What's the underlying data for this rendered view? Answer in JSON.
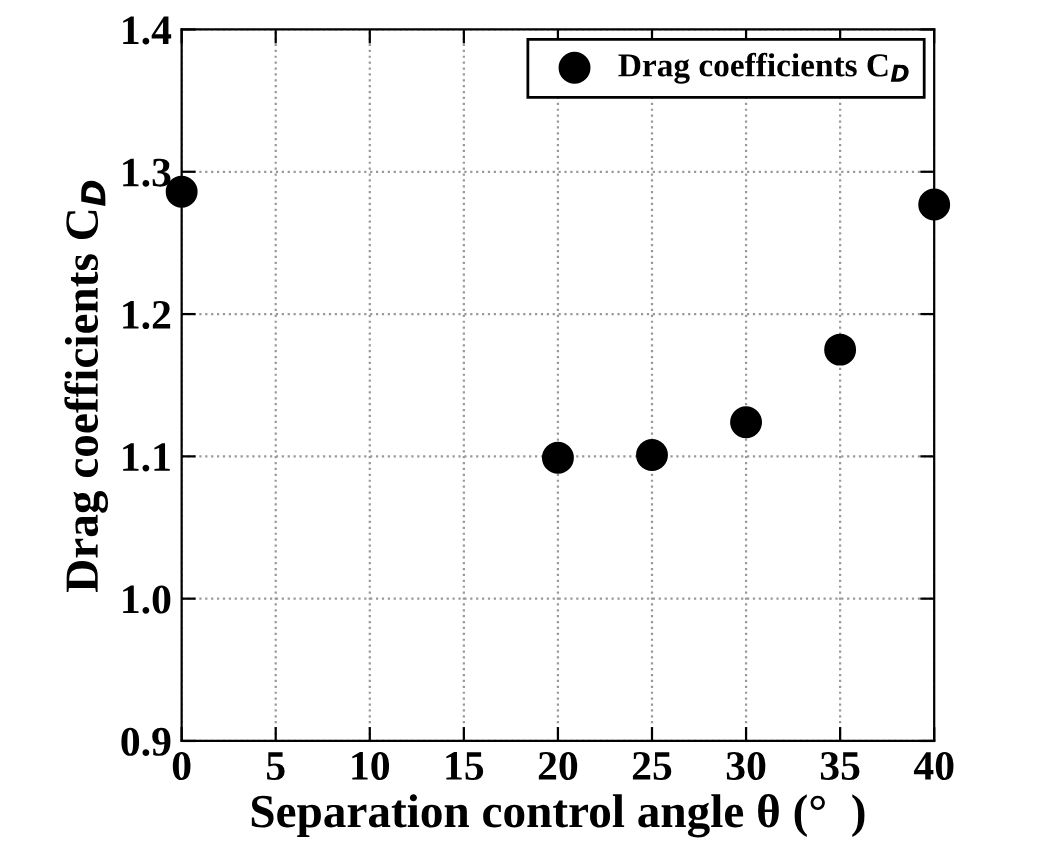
{
  "chart_data": {
    "type": "scatter",
    "xlabel": "Separation control angle θ (°  )",
    "ylabel": "Drag coefficients C$_{D}$",
    "x": [
      0,
      20,
      25,
      30,
      35,
      40
    ],
    "series": [
      {
        "name": "Drag coefficients C$_{D}$",
        "color": "#000000",
        "values": [
          1.286,
          1.099,
          1.101,
          1.124,
          1.175,
          1.277
        ]
      }
    ],
    "xlim": [
      0,
      40
    ],
    "xticks": [
      0,
      5,
      10,
      15,
      20,
      25,
      30,
      35,
      40
    ],
    "ylim": [
      0.9,
      1.4
    ],
    "yticks": [
      {
        "value": 0.9,
        "label": "0.9"
      },
      {
        "value": 1.0,
        "label": "1.0"
      },
      {
        "value": 1.1,
        "label": "1.1"
      },
      {
        "value": 1.2,
        "label": "1.2"
      },
      {
        "value": 1.3,
        "label": "1.3"
      },
      {
        "value": 1.4,
        "label": "1.4"
      }
    ],
    "grid": true,
    "legend": "top right",
    "marker": "circle"
  }
}
